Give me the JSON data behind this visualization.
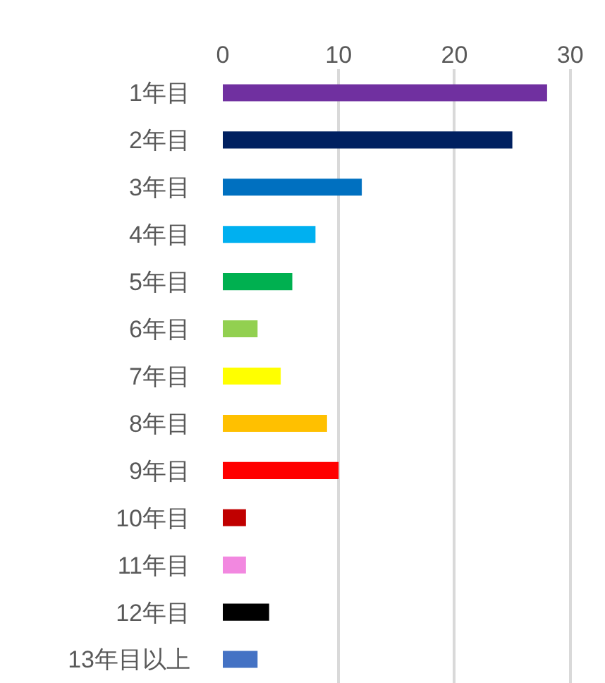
{
  "chart_data": {
    "type": "bar",
    "orientation": "horizontal",
    "categories": [
      "1年目",
      "2年目",
      "3年目",
      "4年目",
      "5年目",
      "6年目",
      "7年目",
      "8年目",
      "9年目",
      "10年目",
      "11年目",
      "12年目",
      "13年目以上"
    ],
    "values": [
      28,
      25,
      12,
      8,
      6,
      3,
      5,
      9,
      10,
      2,
      2,
      4,
      3
    ],
    "colors": [
      "#7030a0",
      "#002060",
      "#0070c0",
      "#00b0f0",
      "#00b050",
      "#92d050",
      "#ffff00",
      "#ffc000",
      "#ff0000",
      "#c00000",
      "#f288e0",
      "#000000",
      "#4472c4"
    ],
    "xlim": [
      0,
      33
    ],
    "xticks": [
      0,
      10,
      20,
      30
    ],
    "grid": "x",
    "legend": false
  }
}
